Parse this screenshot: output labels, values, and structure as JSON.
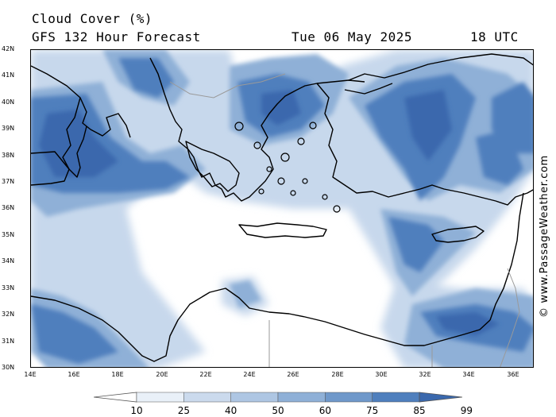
{
  "header": {
    "line1": "Cloud Cover (%)",
    "line2": "GFS 132 Hour Forecast",
    "date": "Tue 06 May 2025",
    "utc": "18 UTC"
  },
  "watermark": "© www.PassageWeather.com",
  "map": {
    "lat_labels": [
      "42N",
      "41N",
      "40N",
      "39N",
      "38N",
      "37N",
      "36N",
      "35N",
      "34N",
      "33N",
      "32N",
      "31N",
      "30N"
    ],
    "lon_labels": [
      "14E",
      "16E",
      "18E",
      "20E",
      "22E",
      "24E",
      "26E",
      "28E",
      "30E",
      "32E",
      "34E",
      "36E"
    ],
    "colors": {
      "land_outline": "#000000",
      "border": "#9a9a9a",
      "clear": "#ffffff"
    }
  },
  "legend": {
    "labels": [
      "10",
      "25",
      "40",
      "50",
      "60",
      "75",
      "85",
      "99"
    ],
    "colors": [
      "#ffffff",
      "#e9f0f8",
      "#cbdaed",
      "#aec6e3",
      "#8fb0d7",
      "#6f98ca",
      "#4f7fbd",
      "#3a68ad"
    ]
  }
}
